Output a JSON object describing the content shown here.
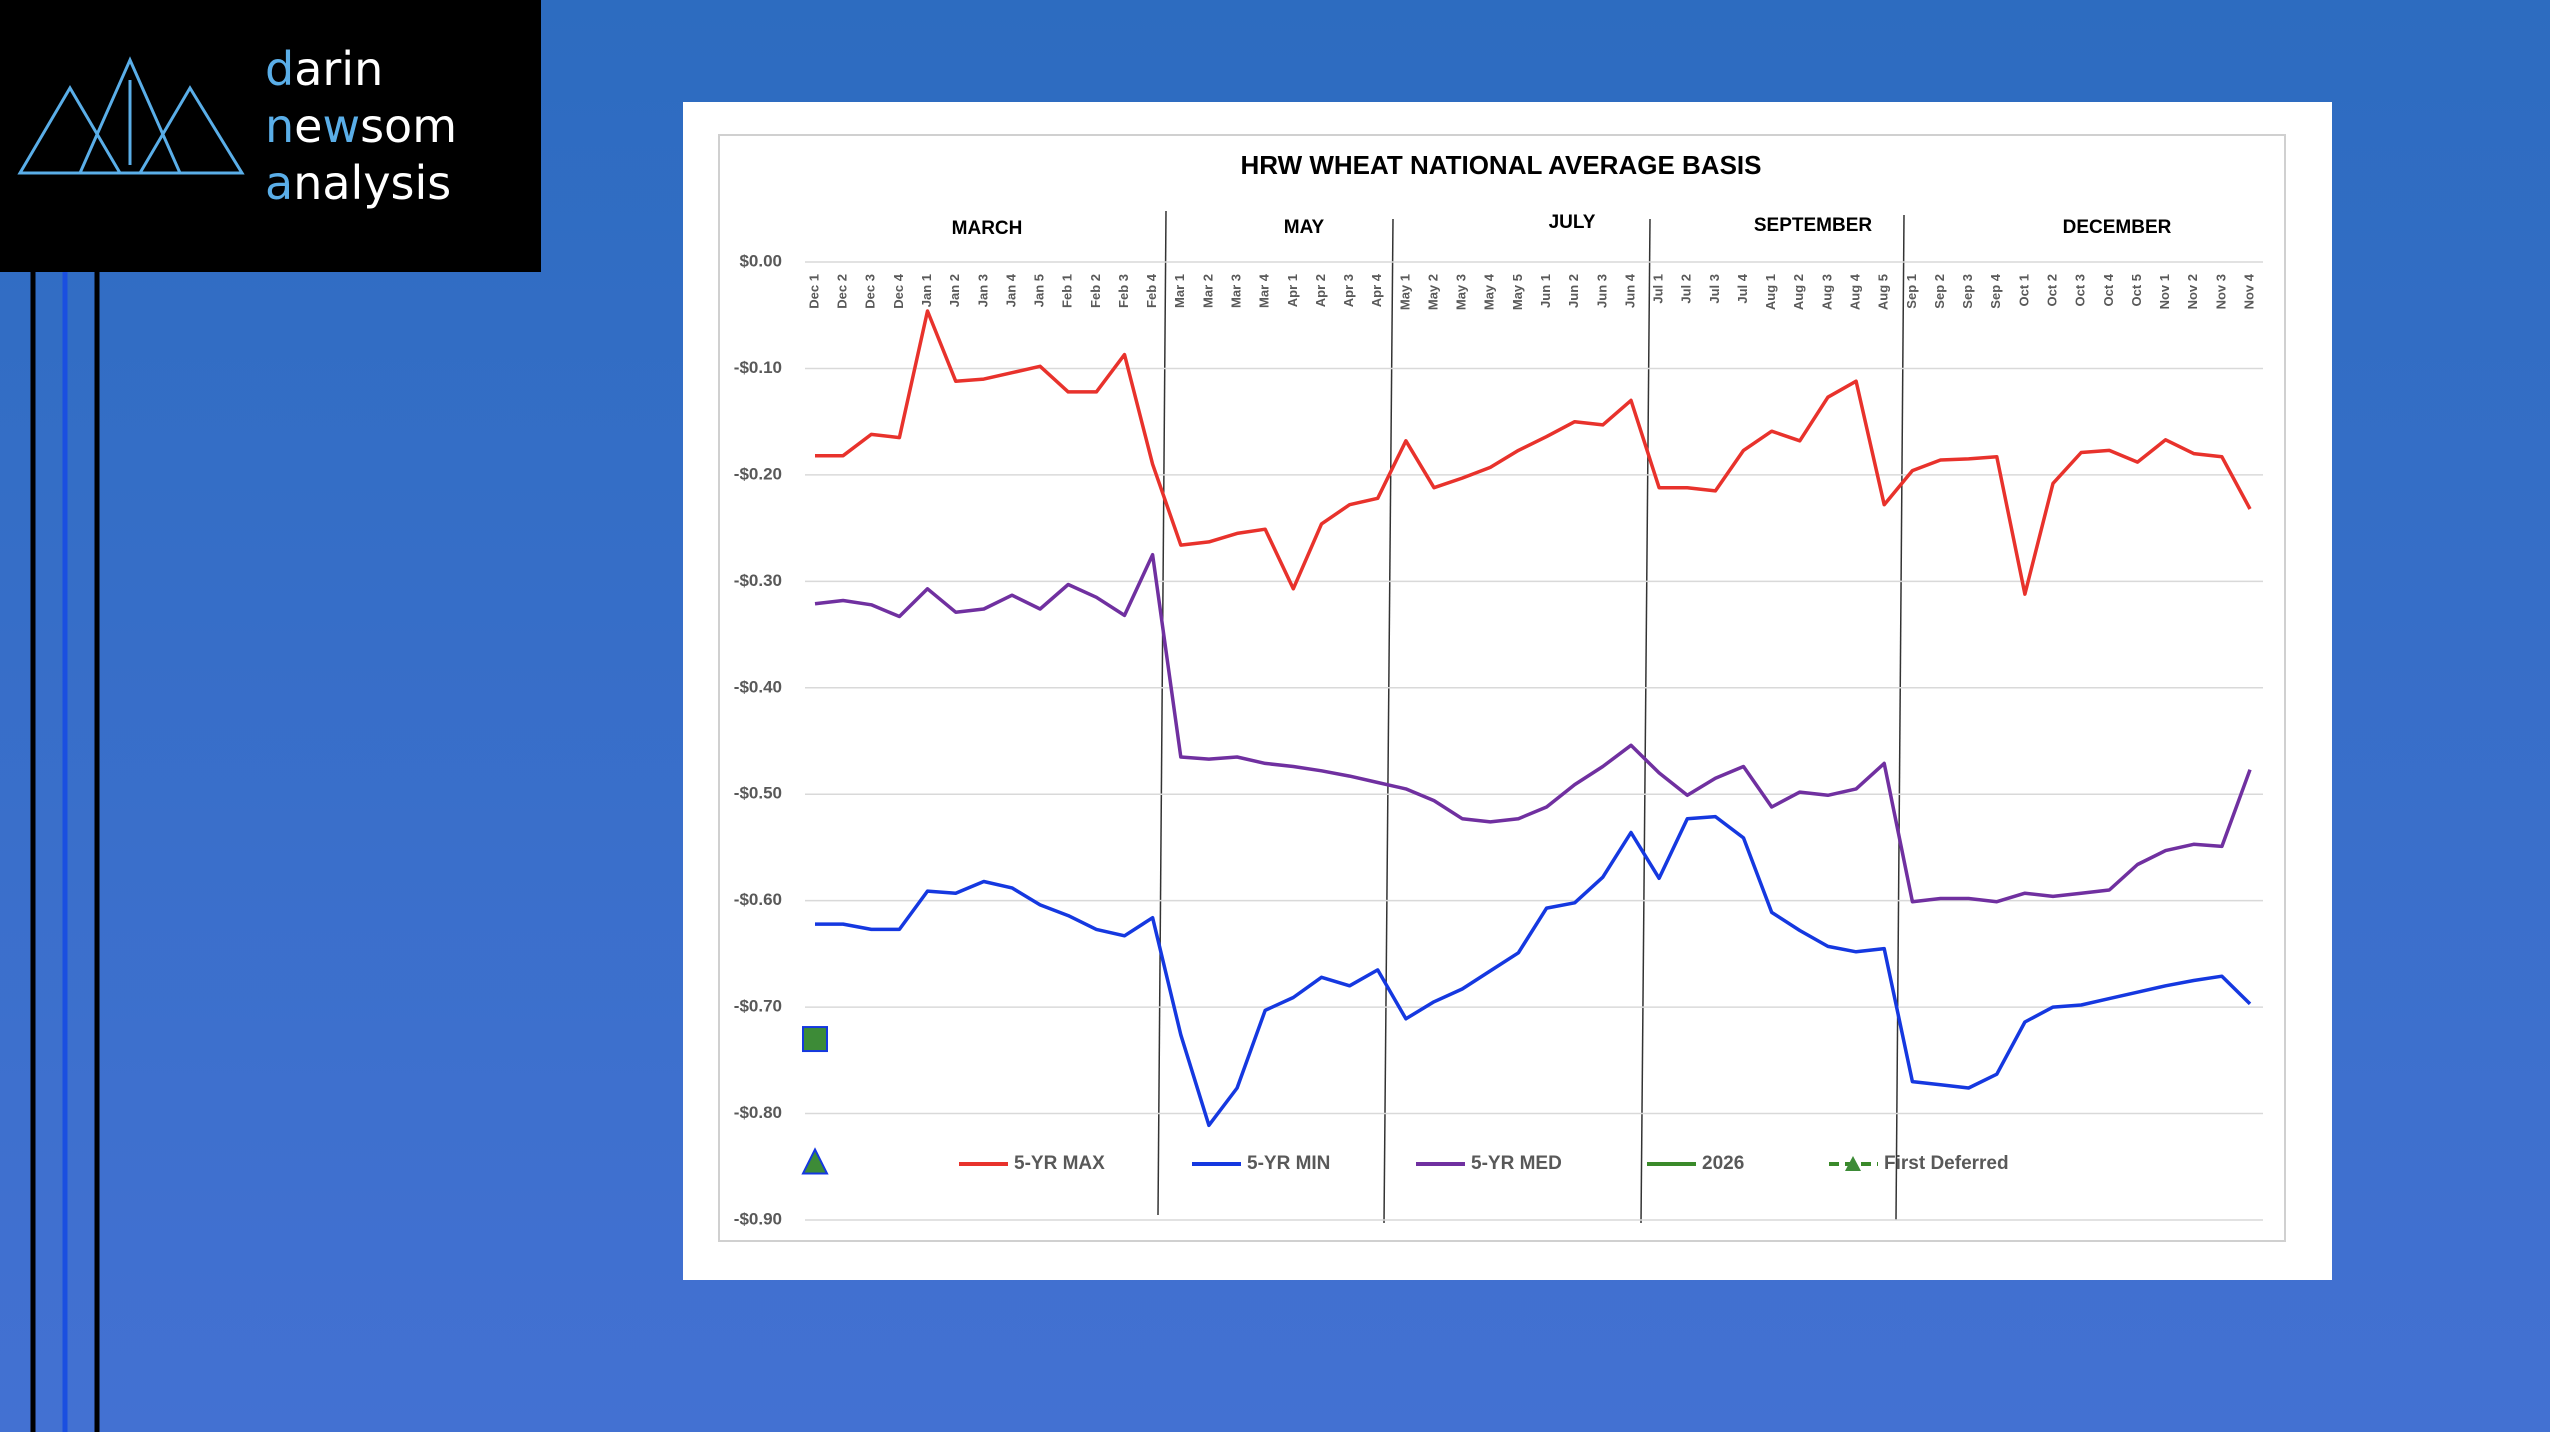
{
  "logo": {
    "lines": [
      [
        "d",
        "arin"
      ],
      [
        "n",
        "e",
        "w",
        "som"
      ],
      [
        "a",
        "nalysis"
      ]
    ]
  },
  "chart_data": {
    "type": "line",
    "title": "HRW WHEAT NATIONAL AVERAGE BASIS",
    "sections": [
      "MARCH",
      "MAY",
      "JULY",
      "SEPTEMBER",
      "DECEMBER"
    ],
    "categories": [
      "Dec 1",
      "Dec 2",
      "Dec 3",
      "Dec 4",
      "Jan 1",
      "Jan 2",
      "Jan 3",
      "Jan 4",
      "Jan 5",
      "Feb 1",
      "Feb 2",
      "Feb 3",
      "Feb 4",
      "Mar 1",
      "Mar 2",
      "Mar 3",
      "Mar 4",
      "Apr 1",
      "Apr 2",
      "Apr 3",
      "Apr 4",
      "May 1",
      "May 2",
      "May 3",
      "May 4",
      "May 5",
      "Jun 1",
      "Jun 2",
      "Jun 3",
      "Jun 4",
      "Jul 1",
      "Jul 2",
      "Jul 3",
      "Jul 4",
      "Aug 1",
      "Aug 2",
      "Aug 3",
      "Aug 4",
      "Aug 5",
      "Sep 1",
      "Sep 2",
      "Sep 3",
      "Sep 4",
      "Oct 1",
      "Oct 2",
      "Oct 3",
      "Oct 4",
      "Oct 5",
      "Nov 1",
      "Nov 2",
      "Nov 3",
      "Nov 4"
    ],
    "ylim": [
      -0.9,
      0
    ],
    "yticks": [
      {
        "value": 0,
        "label": "$0.00"
      },
      {
        "value": -0.1,
        "label": "-$0.10"
      },
      {
        "value": -0.2,
        "label": "-$0.20"
      },
      {
        "value": -0.3,
        "label": "-$0.30"
      },
      {
        "value": -0.4,
        "label": "-$0.40"
      },
      {
        "value": -0.5,
        "label": "-$0.50"
      },
      {
        "value": -0.6,
        "label": "-$0.60"
      },
      {
        "value": -0.7,
        "label": "-$0.70"
      },
      {
        "value": -0.8,
        "label": "-$0.80"
      },
      {
        "value": -0.9,
        "label": "-$0.90"
      }
    ],
    "grid": true,
    "legend": "bottom",
    "series": [
      {
        "name": "5-YR MAX",
        "color": "#e8322c",
        "values": [
          -0.182,
          -0.182,
          -0.162,
          -0.165,
          -0.046,
          -0.112,
          -0.11,
          -0.104,
          -0.098,
          -0.122,
          -0.122,
          -0.087,
          -0.19,
          -0.266,
          -0.263,
          -0.255,
          -0.251,
          -0.307,
          -0.246,
          -0.228,
          -0.222,
          -0.168,
          -0.212,
          -0.203,
          -0.193,
          -0.177,
          -0.164,
          -0.15,
          -0.153,
          -0.13,
          -0.212,
          -0.212,
          -0.215,
          -0.177,
          -0.159,
          -0.168,
          -0.127,
          -0.112,
          -0.228,
          -0.196,
          -0.186,
          -0.185,
          -0.183,
          -0.312,
          -0.208,
          -0.179,
          -0.177,
          -0.188,
          -0.167,
          -0.18,
          -0.183,
          -0.232
        ]
      },
      {
        "name": "5-YR MIN",
        "color": "#1538e0",
        "values": [
          -0.622,
          -0.622,
          -0.627,
          -0.627,
          -0.591,
          -0.593,
          -0.582,
          -0.588,
          -0.604,
          -0.614,
          -0.627,
          -0.633,
          -0.616,
          -0.726,
          -0.811,
          -0.776,
          -0.703,
          -0.691,
          -0.672,
          -0.68,
          -0.665,
          -0.711,
          -0.695,
          -0.683,
          -0.666,
          -0.649,
          -0.607,
          -0.602,
          -0.578,
          -0.536,
          -0.579,
          -0.523,
          -0.521,
          -0.541,
          -0.611,
          -0.628,
          -0.643,
          -0.648,
          -0.645,
          -0.77,
          -0.773,
          -0.776,
          -0.763,
          -0.714,
          -0.7,
          -0.698,
          -0.692,
          -0.686,
          -0.68,
          -0.675,
          -0.671,
          -0.697
        ]
      },
      {
        "name": "5-YR MED",
        "color": "#7030a0",
        "values": [
          -0.321,
          -0.318,
          -0.322,
          -0.333,
          -0.307,
          -0.329,
          -0.326,
          -0.313,
          -0.326,
          -0.303,
          -0.315,
          -0.332,
          -0.275,
          -0.465,
          -0.467,
          -0.465,
          -0.471,
          -0.474,
          -0.478,
          -0.483,
          -0.489,
          -0.495,
          -0.506,
          -0.523,
          -0.526,
          -0.523,
          -0.512,
          -0.491,
          -0.474,
          -0.454,
          -0.48,
          -0.501,
          -0.485,
          -0.474,
          -0.512,
          -0.498,
          -0.501,
          -0.495,
          -0.471,
          -0.601,
          -0.598,
          -0.598,
          -0.601,
          -0.593,
          -0.596,
          -0.593,
          -0.59,
          -0.566,
          -0.553,
          -0.547,
          -0.549,
          -0.477
        ]
      },
      {
        "name": "2026",
        "color": "#3a8a2a",
        "marker": "square",
        "values": [
          -0.73,
          null,
          null,
          null,
          null,
          null,
          null,
          null,
          null,
          null,
          null,
          null,
          null,
          null,
          null,
          null,
          null,
          null,
          null,
          null,
          null,
          null,
          null,
          null,
          null,
          null,
          null,
          null,
          null,
          null,
          null,
          null,
          null,
          null,
          null,
          null,
          null,
          null,
          null,
          null,
          null,
          null,
          null,
          null,
          null,
          null,
          null,
          null,
          null,
          null,
          null,
          null
        ]
      },
      {
        "name": "First Deferred",
        "color": "#3a8a2a",
        "marker": "triangle",
        "dash": true,
        "values": [
          -0.845,
          null,
          null,
          null,
          null,
          null,
          null,
          null,
          null,
          null,
          null,
          null,
          null,
          null,
          null,
          null,
          null,
          null,
          null,
          null,
          null,
          null,
          null,
          null,
          null,
          null,
          null,
          null,
          null,
          null,
          null,
          null,
          null,
          null,
          null,
          null,
          null,
          null,
          null,
          null,
          null,
          null,
          null,
          null,
          null,
          null,
          null,
          null,
          null,
          null,
          null,
          null
        ]
      }
    ]
  }
}
